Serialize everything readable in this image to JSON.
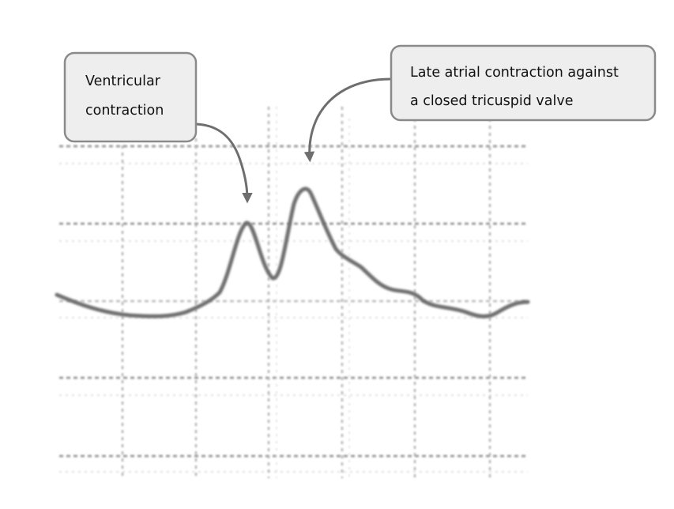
{
  "callouts": [
    {
      "id": "ventricular",
      "lines": [
        "Ventricular",
        "contraction"
      ]
    },
    {
      "id": "atrial",
      "lines": [
        "Late atrial contraction against",
        "a closed tricuspid valve"
      ]
    }
  ],
  "colors": {
    "background": "#ffffff",
    "grid": "#b8b8b8",
    "trace": "#6f6f6f",
    "callout_fill": "#eeeeee",
    "callout_border": "#8a8a8a",
    "arrow": "#6e6e6e",
    "text": "#111111"
  }
}
